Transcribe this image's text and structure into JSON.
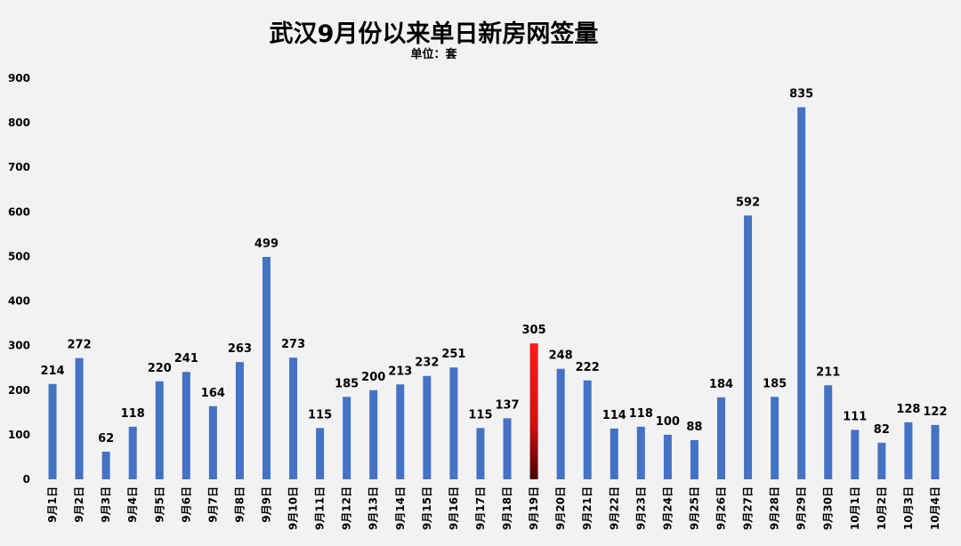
{
  "chart_data": {
    "type": "bar",
    "title": "武汉9月份以来单日新房网签量",
    "subtitle": "单位：套",
    "ylim": [
      0,
      900
    ],
    "yticks": [
      0,
      100,
      200,
      300,
      400,
      500,
      600,
      700,
      800,
      900
    ],
    "grid": false,
    "bar_color": "#4472c4",
    "highlight_color": "#e31414",
    "highlight_category": "9月19日",
    "categories": [
      "9月1日",
      "9月2日",
      "9月3日",
      "9月4日",
      "9月5日",
      "9月6日",
      "9月7日",
      "9月8日",
      "9月9日",
      "9月10日",
      "9月11日",
      "9月12日",
      "9月13日",
      "9月14日",
      "9月15日",
      "9月16日",
      "9月17日",
      "9月18日",
      "9月19日",
      "9月20日",
      "9月21日",
      "9月22日",
      "9月23日",
      "9月24日",
      "9月25日",
      "9月26日",
      "9月27日",
      "9月28日",
      "9月29日",
      "9月30日",
      "10月1日",
      "10月2日",
      "10月3日",
      "10月4日"
    ],
    "values": [
      214,
      272,
      62,
      118,
      220,
      241,
      164,
      263,
      499,
      273,
      115,
      185,
      200,
      213,
      232,
      251,
      115,
      137,
      305,
      248,
      222,
      114,
      118,
      100,
      88,
      184,
      592,
      185,
      835,
      211,
      111,
      82,
      128,
      122
    ]
  }
}
